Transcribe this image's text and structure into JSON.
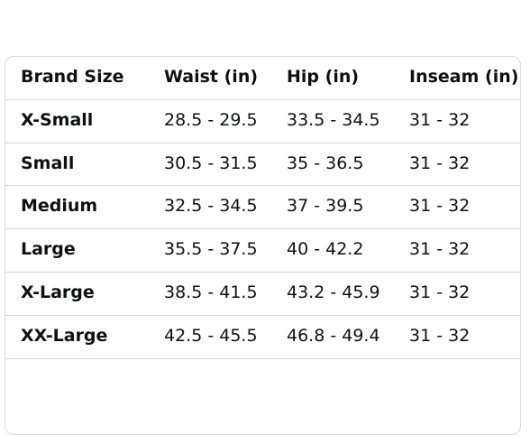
{
  "table": {
    "header": [
      "Brand Size",
      "Waist (in)",
      "Hip (in)",
      "Inseam (in)"
    ],
    "rows": [
      [
        "X-Small",
        "28.5 - 29.5",
        "33.5 - 34.5",
        "31 - 32"
      ],
      [
        "Small",
        "30.5 - 31.5",
        "35 - 36.5",
        "31 - 32"
      ],
      [
        "Medium",
        "32.5 - 34.5",
        "37 - 39.5",
        "31 - 32"
      ],
      [
        "Large",
        "35.5 - 37.5",
        "40 - 42.2",
        "31 - 32"
      ],
      [
        "X-Large",
        "38.5 - 41.5",
        "43.2 - 45.9",
        "31 - 32"
      ],
      [
        "XX-Large",
        "42.5 - 45.5",
        "46.8 - 49.4",
        "31 - 32"
      ]
    ]
  }
}
